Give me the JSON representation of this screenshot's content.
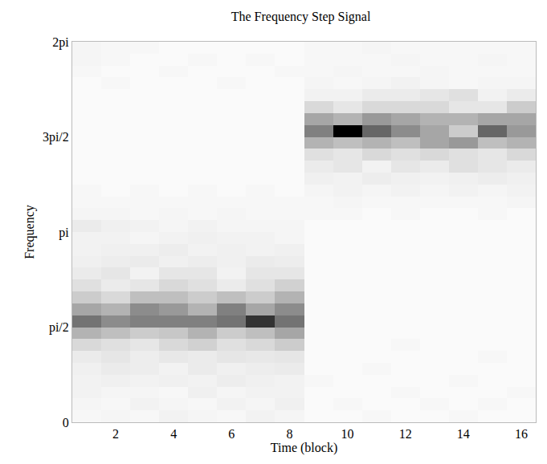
{
  "chart_data": {
    "type": "heatmap",
    "title": "The Frequency Step Signal",
    "x_label": "Time (block)",
    "y_label": "Frequency",
    "x": [
      1,
      2,
      3,
      4,
      5,
      6,
      7,
      8,
      9,
      10,
      11,
      12,
      13,
      14,
      15,
      16
    ],
    "y": [
      0.098,
      0.295,
      0.491,
      0.687,
      0.884,
      1.08,
      1.276,
      1.473,
      1.669,
      1.865,
      2.062,
      2.258,
      2.454,
      2.651,
      2.847,
      3.043,
      3.24,
      3.436,
      3.632,
      3.829,
      4.025,
      4.221,
      4.418,
      4.614,
      4.811,
      5.007,
      5.203,
      5.4,
      5.596,
      5.792,
      5.989,
      6.185
    ],
    "z": [
      [
        0.03,
        0.04,
        0.03,
        0.05,
        0.04,
        0.03,
        0.05,
        0.04,
        0.02,
        0.02,
        0.03,
        0.02,
        0.02,
        0.03,
        0.02,
        0.02
      ],
      [
        0.04,
        0.03,
        0.05,
        0.04,
        0.03,
        0.05,
        0.04,
        0.06,
        0.02,
        0.03,
        0.02,
        0.02,
        0.03,
        0.02,
        0.03,
        0.02
      ],
      [
        0.05,
        0.04,
        0.04,
        0.03,
        0.06,
        0.04,
        0.05,
        0.05,
        0.02,
        0.02,
        0.02,
        0.03,
        0.02,
        0.02,
        0.02,
        0.03
      ],
      [
        0.05,
        0.06,
        0.05,
        0.06,
        0.05,
        0.07,
        0.06,
        0.05,
        0.03,
        0.02,
        0.02,
        0.02,
        0.02,
        0.03,
        0.02,
        0.02
      ],
      [
        0.06,
        0.08,
        0.07,
        0.05,
        0.08,
        0.06,
        0.07,
        0.08,
        0.02,
        0.02,
        0.03,
        0.02,
        0.02,
        0.02,
        0.02,
        0.02
      ],
      [
        0.08,
        0.1,
        0.07,
        0.09,
        0.08,
        0.1,
        0.09,
        0.1,
        0.02,
        0.02,
        0.02,
        0.02,
        0.02,
        0.02,
        0.03,
        0.02
      ],
      [
        0.15,
        0.12,
        0.1,
        0.15,
        0.18,
        0.12,
        0.15,
        0.2,
        0.02,
        0.02,
        0.02,
        0.03,
        0.02,
        0.02,
        0.02,
        0.02
      ],
      [
        0.3,
        0.25,
        0.2,
        0.22,
        0.3,
        0.2,
        0.25,
        0.35,
        0.02,
        0.02,
        0.02,
        0.02,
        0.02,
        0.02,
        0.02,
        0.02
      ],
      [
        0.55,
        0.45,
        0.5,
        0.5,
        0.5,
        0.55,
        0.8,
        0.55,
        0.02,
        0.02,
        0.02,
        0.02,
        0.02,
        0.02,
        0.02,
        0.02
      ],
      [
        0.35,
        0.3,
        0.45,
        0.4,
        0.3,
        0.5,
        0.35,
        0.45,
        0.02,
        0.02,
        0.02,
        0.02,
        0.02,
        0.02,
        0.02,
        0.02
      ],
      [
        0.2,
        0.15,
        0.25,
        0.25,
        0.2,
        0.25,
        0.2,
        0.3,
        0.02,
        0.02,
        0.02,
        0.02,
        0.02,
        0.02,
        0.02,
        0.02
      ],
      [
        0.12,
        0.08,
        0.1,
        0.15,
        0.12,
        0.08,
        0.12,
        0.18,
        0.02,
        0.02,
        0.02,
        0.02,
        0.02,
        0.02,
        0.02,
        0.02
      ],
      [
        0.08,
        0.1,
        0.05,
        0.1,
        0.1,
        0.05,
        0.1,
        0.1,
        0.02,
        0.02,
        0.02,
        0.02,
        0.02,
        0.02,
        0.02,
        0.02
      ],
      [
        0.06,
        0.07,
        0.08,
        0.06,
        0.07,
        0.06,
        0.08,
        0.07,
        0.02,
        0.02,
        0.02,
        0.02,
        0.02,
        0.02,
        0.02,
        0.02
      ],
      [
        0.05,
        0.06,
        0.06,
        0.07,
        0.05,
        0.06,
        0.05,
        0.06,
        0.02,
        0.02,
        0.02,
        0.02,
        0.02,
        0.02,
        0.02,
        0.02
      ],
      [
        0.05,
        0.05,
        0.04,
        0.05,
        0.06,
        0.05,
        0.05,
        0.04,
        0.02,
        0.02,
        0.02,
        0.02,
        0.02,
        0.02,
        0.02,
        0.02
      ],
      [
        0.08,
        0.06,
        0.05,
        0.04,
        0.05,
        0.04,
        0.04,
        0.04,
        0.02,
        0.02,
        0.02,
        0.02,
        0.02,
        0.02,
        0.02,
        0.02
      ],
      [
        0.04,
        0.04,
        0.03,
        0.04,
        0.03,
        0.04,
        0.03,
        0.03,
        0.03,
        0.03,
        0.02,
        0.03,
        0.02,
        0.02,
        0.03,
        0.02
      ],
      [
        0.03,
        0.03,
        0.03,
        0.03,
        0.03,
        0.03,
        0.03,
        0.03,
        0.03,
        0.04,
        0.03,
        0.03,
        0.03,
        0.03,
        0.03,
        0.04
      ],
      [
        0.03,
        0.02,
        0.03,
        0.02,
        0.03,
        0.02,
        0.03,
        0.02,
        0.04,
        0.05,
        0.04,
        0.05,
        0.04,
        0.05,
        0.04,
        0.05
      ],
      [
        0.02,
        0.02,
        0.02,
        0.02,
        0.02,
        0.02,
        0.02,
        0.02,
        0.06,
        0.05,
        0.07,
        0.06,
        0.05,
        0.06,
        0.07,
        0.06
      ],
      [
        0.02,
        0.02,
        0.02,
        0.02,
        0.02,
        0.02,
        0.02,
        0.02,
        0.08,
        0.1,
        0.05,
        0.1,
        0.08,
        0.12,
        0.1,
        0.08
      ],
      [
        0.02,
        0.02,
        0.02,
        0.02,
        0.02,
        0.02,
        0.02,
        0.02,
        0.12,
        0.1,
        0.15,
        0.12,
        0.15,
        0.12,
        0.1,
        0.15
      ],
      [
        0.02,
        0.02,
        0.02,
        0.02,
        0.02,
        0.02,
        0.02,
        0.02,
        0.3,
        0.25,
        0.3,
        0.25,
        0.35,
        0.4,
        0.25,
        0.3
      ],
      [
        0.02,
        0.02,
        0.02,
        0.02,
        0.02,
        0.02,
        0.02,
        0.02,
        0.5,
        1.0,
        0.6,
        0.45,
        0.35,
        0.2,
        0.6,
        0.4
      ],
      [
        0.02,
        0.02,
        0.02,
        0.02,
        0.02,
        0.02,
        0.02,
        0.02,
        0.35,
        0.3,
        0.4,
        0.35,
        0.3,
        0.3,
        0.35,
        0.35
      ],
      [
        0.02,
        0.02,
        0.02,
        0.02,
        0.02,
        0.02,
        0.02,
        0.02,
        0.15,
        0.1,
        0.15,
        0.15,
        0.15,
        0.1,
        0.1,
        0.2
      ],
      [
        0.02,
        0.02,
        0.02,
        0.02,
        0.02,
        0.02,
        0.02,
        0.02,
        0.05,
        0.05,
        0.08,
        0.08,
        0.1,
        0.12,
        0.05,
        0.08
      ],
      [
        0.02,
        0.03,
        0.02,
        0.02,
        0.02,
        0.03,
        0.02,
        0.02,
        0.04,
        0.03,
        0.04,
        0.05,
        0.04,
        0.03,
        0.04,
        0.04
      ],
      [
        0.03,
        0.02,
        0.02,
        0.03,
        0.02,
        0.02,
        0.02,
        0.03,
        0.03,
        0.04,
        0.03,
        0.03,
        0.04,
        0.03,
        0.03,
        0.03
      ],
      [
        0.04,
        0.03,
        0.02,
        0.02,
        0.03,
        0.02,
        0.03,
        0.02,
        0.03,
        0.03,
        0.03,
        0.04,
        0.03,
        0.03,
        0.04,
        0.03
      ],
      [
        0.04,
        0.03,
        0.03,
        0.02,
        0.02,
        0.02,
        0.02,
        0.02,
        0.03,
        0.03,
        0.04,
        0.03,
        0.03,
        0.03,
        0.03,
        0.03
      ]
    ],
    "zlim": [
      0,
      1
    ],
    "colors": [
      "#ffffff",
      "#000000"
    ],
    "xlim": [
      0.5,
      16.5
    ],
    "xticks": [
      2,
      4,
      6,
      8,
      10,
      12,
      14,
      16
    ],
    "ylim": [
      0,
      6.2832
    ],
    "yticks": [
      0,
      {
        "value": 1.5708,
        "label": "pi/2"
      },
      {
        "value": 3.1416,
        "label": "pi"
      },
      {
        "value": 4.7124,
        "label": "3pi/2"
      },
      {
        "value": 6.2832,
        "label": "2pi"
      }
    ],
    "grid": false
  }
}
